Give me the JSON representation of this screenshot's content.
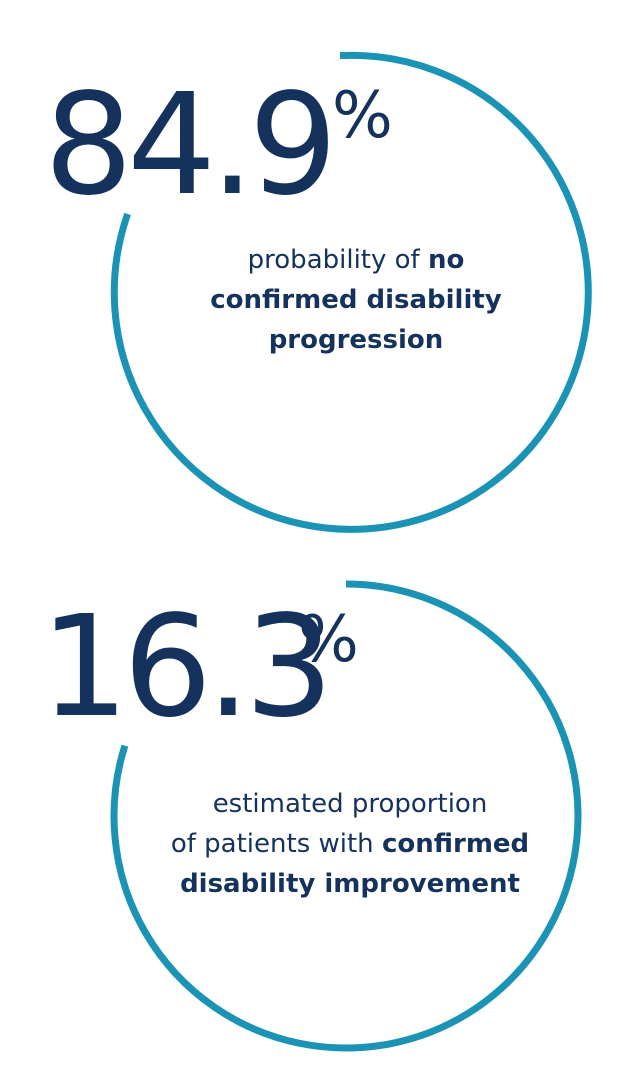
{
  "colors": {
    "ring": "#1a93b4",
    "number": "#14325c",
    "caption": "#14325c"
  },
  "stats": [
    {
      "value": "84.9",
      "unit": "%",
      "fraction": 0.849,
      "caption_lines": [
        [
          {
            "text": "probability of ",
            "bold": false
          },
          {
            "text": "no",
            "bold": true
          }
        ],
        [
          {
            "text": "confirmed disability",
            "bold": true
          }
        ],
        [
          {
            "text": "progression",
            "bold": true
          }
        ]
      ]
    },
    {
      "value": "16.3",
      "unit": "%",
      "fraction": 0.163,
      "caption_lines": [
        [
          {
            "text": "estimated proportion",
            "bold": false
          }
        ],
        [
          {
            "text": "of patients with ",
            "bold": false
          },
          {
            "text": "confirmed",
            "bold": true
          }
        ],
        [
          {
            "text": "disability improvement",
            "bold": true
          }
        ]
      ]
    }
  ]
}
